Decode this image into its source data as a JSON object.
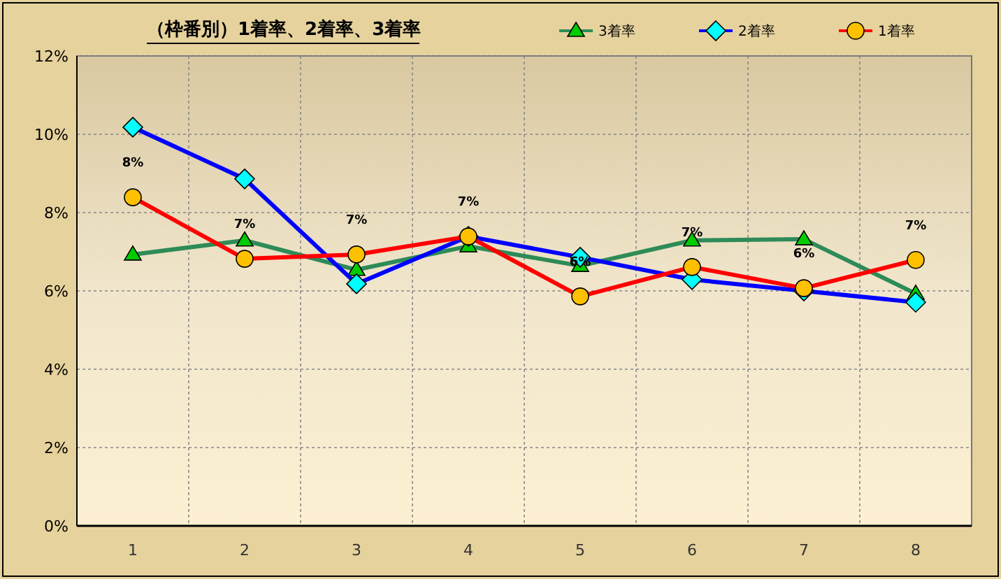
{
  "chart_data": {
    "type": "line",
    "title": "（枠番別）1着率、2着率、3着率",
    "categories": [
      "1",
      "2",
      "3",
      "4",
      "5",
      "6",
      "7",
      "8"
    ],
    "series": [
      {
        "name": "3着率",
        "color": "#2e8b57",
        "marker": "triangle",
        "values": [
          6.93,
          7.29,
          6.54,
          7.14,
          6.64,
          7.29,
          7.32,
          5.93
        ]
      },
      {
        "name": "2着率",
        "color": "#0000ff",
        "marker": "diamond",
        "values": [
          10.18,
          8.86,
          6.18,
          7.39,
          6.86,
          6.29,
          6.0,
          5.71
        ]
      },
      {
        "name": "1着率",
        "color": "#ff0000",
        "marker": "circle",
        "values": [
          8.39,
          6.82,
          6.93,
          7.39,
          5.86,
          6.61,
          6.07,
          6.79
        ],
        "value_labels": [
          "8%",
          "7%",
          "7%",
          "7%",
          "6%",
          "7%",
          "6%",
          "7%"
        ]
      }
    ],
    "ylim": [
      0,
      12
    ],
    "yticks": [
      {
        "value": 0,
        "label": "0%"
      },
      {
        "value": 2,
        "label": "2%"
      },
      {
        "value": 4,
        "label": "4%"
      },
      {
        "value": 6,
        "label": "6%"
      },
      {
        "value": 8,
        "label": "8%"
      },
      {
        "value": 10,
        "label": "10%"
      },
      {
        "value": 12,
        "label": "12%"
      }
    ],
    "grid": true,
    "legend": "top right",
    "line_style": "solid"
  }
}
